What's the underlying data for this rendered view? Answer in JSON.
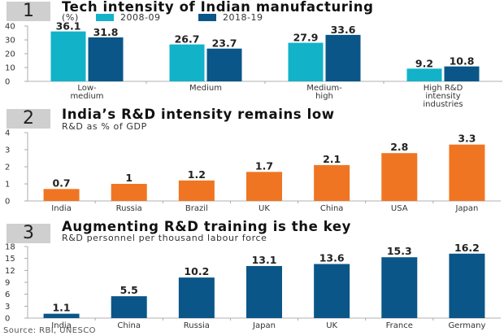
{
  "chart_data": [
    {
      "type": "bar",
      "number": "1",
      "title": "Tech intensity of Indian manufacturing",
      "subtitle": "(%)",
      "categories": [
        [
          "Low-",
          "medium"
        ],
        [
          "Medium"
        ],
        [
          "Medium-",
          "high"
        ],
        [
          "High R&D",
          "intensity",
          "industries"
        ]
      ],
      "series": [
        {
          "name": "2008-09",
          "color": "#12b2c9",
          "values": [
            36.1,
            26.7,
            27.9,
            9.2
          ]
        },
        {
          "name": "2018-19",
          "color": "#0a5688",
          "values": [
            31.8,
            23.7,
            33.6,
            10.8
          ]
        }
      ],
      "yticks": [
        0,
        10,
        20,
        30,
        40
      ],
      "ylim": [
        0,
        40
      ],
      "legend": "top",
      "grid": false
    },
    {
      "type": "bar",
      "number": "2",
      "title": "India’s R&D intensity remains low",
      "subtitle": "R&D as % of GDP",
      "categories": [
        "India",
        "Russia",
        "Brazil",
        "UK",
        "China",
        "USA",
        "Japan"
      ],
      "values": [
        0.7,
        1,
        1.2,
        1.7,
        2.1,
        2.8,
        3.3
      ],
      "labels": [
        "0.7",
        "1",
        "1.2",
        "1.7",
        "2.1",
        "2.8",
        "3.3"
      ],
      "color": "#f07522",
      "yticks": [
        0,
        1,
        2,
        3,
        4
      ],
      "ylim": [
        0,
        4
      ],
      "grid": false
    },
    {
      "type": "bar",
      "number": "3",
      "title": "Augmenting R&D training is the key",
      "subtitle": "R&D personnel per thousand labour force",
      "categories": [
        "India",
        "China",
        "Russia",
        "Japan",
        "UK",
        "France",
        "Germany"
      ],
      "values": [
        1.1,
        5.5,
        10.2,
        13.1,
        13.6,
        15.3,
        16.2
      ],
      "labels": [
        "1.1",
        "5.5",
        "10.2",
        "13.1",
        "13.6",
        "15.3",
        "16.2"
      ],
      "color": "#0a5688",
      "yticks": [
        0,
        3,
        6,
        9,
        12,
        15,
        18
      ],
      "ylim": [
        0,
        18
      ],
      "grid": false
    }
  ],
  "source": "Source: RBI, UNESCO"
}
